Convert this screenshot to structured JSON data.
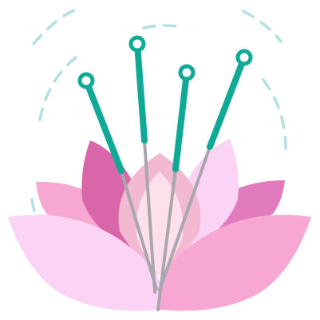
{
  "illustration": {
    "icon": "lotus-acupuncture-icon",
    "colors": {
      "background": "#ffffff",
      "dashed_arc": "#b3e0de",
      "petal_light_pink": "#fbd3f5",
      "petal_mid_pink": "#f7a8d2",
      "petal_deep_pink": "#d966a8",
      "petal_back_pink": "#e27bbd",
      "petal_center_light": "#fde0ec",
      "petal_center_pale": "#f3b9d1",
      "needle_shaft": "#a9a7ad",
      "needle_handle": "#10a996"
    },
    "needle_count": 4
  }
}
